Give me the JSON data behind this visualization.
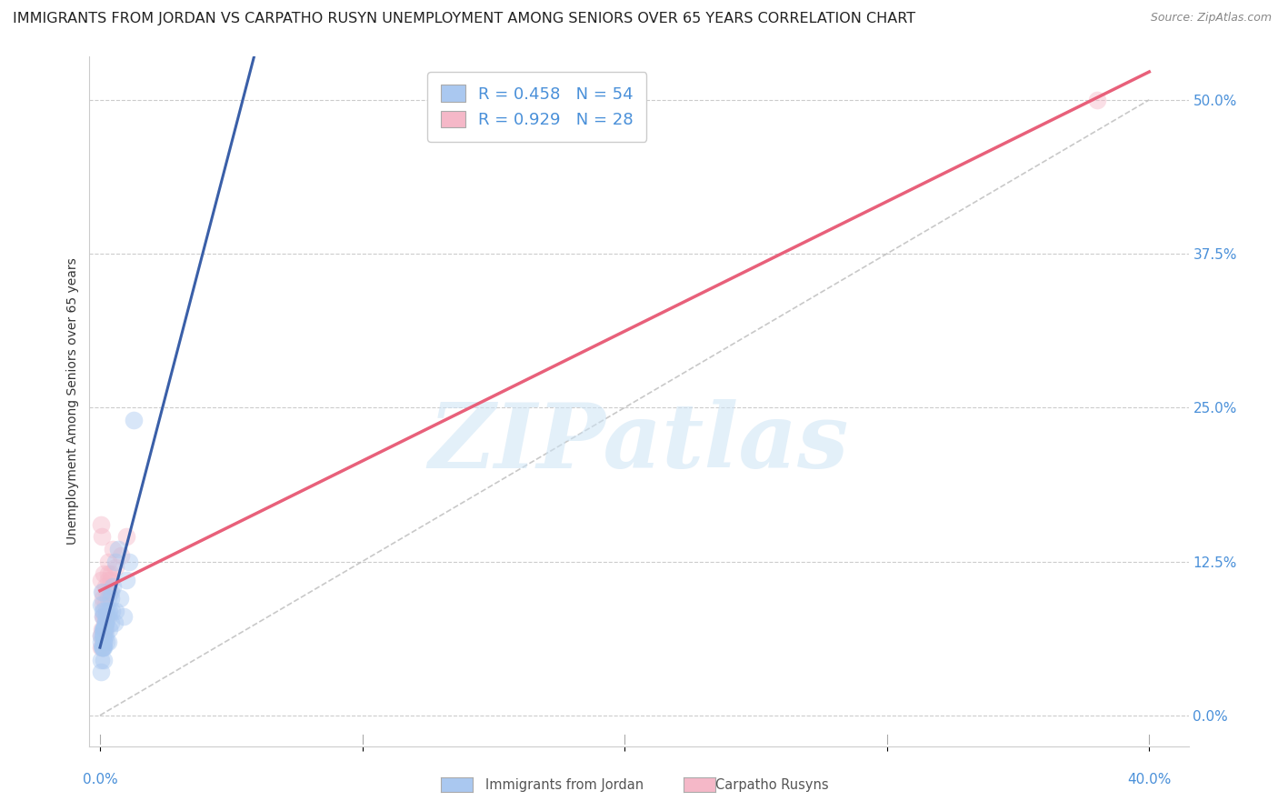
{
  "title": "IMMIGRANTS FROM JORDAN VS CARPATHO RUSYN UNEMPLOYMENT AMONG SENIORS OVER 65 YEARS CORRELATION CHART",
  "source": "Source: ZipAtlas.com",
  "ylabel": "Unemployment Among Seniors over 65 years",
  "legend_label_1": "Immigrants from Jordan",
  "legend_label_2": "Carpatho Rusyns",
  "R1": 0.458,
  "N1": 54,
  "R2": 0.929,
  "N2": 28,
  "color1": "#aac8f0",
  "color2": "#f5b8c8",
  "line_color1": "#3a5fa8",
  "line_color2": "#e8607a",
  "diag_color": "#bbbbbb",
  "xlim_min": -0.004,
  "xlim_max": 0.415,
  "ylim_min": -0.025,
  "ylim_max": 0.535,
  "yticks": [
    0.0,
    0.125,
    0.25,
    0.375,
    0.5
  ],
  "ytick_labels": [
    "0.0%",
    "12.5%",
    "25.0%",
    "37.5%",
    "50.0%"
  ],
  "xtick_left_label": "0.0%",
  "xtick_right_label": "40.0%",
  "watermark_text": "ZIPatlas",
  "background_color": "#ffffff",
  "grid_color": "#cccccc",
  "axis_label_color": "#4a90d9",
  "title_color": "#222222",
  "title_fontsize": 11.5,
  "ylabel_fontsize": 10,
  "tick_fontsize": 11,
  "marker_size": 200,
  "marker_alpha": 0.45,
  "jordan_x": [
    0.0005,
    0.001,
    0.0015,
    0.001,
    0.0005,
    0.002,
    0.0015,
    0.0008,
    0.002,
    0.001,
    0.0006,
    0.0005,
    0.0015,
    0.001,
    0.002,
    0.0025,
    0.003,
    0.0015,
    0.001,
    0.0005,
    0.004,
    0.002,
    0.003,
    0.005,
    0.006,
    0.001,
    0.0015,
    0.0025,
    0.0035,
    0.0015,
    0.0005,
    0.001,
    0.0015,
    0.007,
    0.004,
    0.01,
    0.011,
    0.002,
    0.0015,
    0.003,
    0.001,
    0.0015,
    0.004,
    0.003,
    0.0035,
    0.002,
    0.0015,
    0.0025,
    0.0045,
    0.0055,
    0.0075,
    0.006,
    0.009,
    0.013
  ],
  "jordan_y": [
    0.06,
    0.065,
    0.07,
    0.08,
    0.09,
    0.065,
    0.07,
    0.1,
    0.08,
    0.065,
    0.055,
    0.045,
    0.07,
    0.085,
    0.075,
    0.06,
    0.085,
    0.07,
    0.055,
    0.065,
    0.1,
    0.075,
    0.095,
    0.105,
    0.125,
    0.07,
    0.055,
    0.085,
    0.07,
    0.06,
    0.035,
    0.055,
    0.045,
    0.135,
    0.095,
    0.11,
    0.125,
    0.075,
    0.085,
    0.06,
    0.055,
    0.06,
    0.075,
    0.08,
    0.085,
    0.07,
    0.065,
    0.08,
    0.085,
    0.075,
    0.095,
    0.085,
    0.08,
    0.24
  ],
  "rusyn_x": [
    0.0004,
    0.0005,
    0.0006,
    0.0005,
    0.001,
    0.001,
    0.0005,
    0.0006,
    0.001,
    0.0012,
    0.0015,
    0.0015,
    0.0018,
    0.002,
    0.002,
    0.0025,
    0.0025,
    0.003,
    0.003,
    0.003,
    0.0035,
    0.004,
    0.004,
    0.005,
    0.006,
    0.008,
    0.01,
    0.38
  ],
  "rusyn_y": [
    0.055,
    0.065,
    0.145,
    0.155,
    0.09,
    0.1,
    0.11,
    0.07,
    0.08,
    0.095,
    0.08,
    0.115,
    0.07,
    0.09,
    0.105,
    0.1,
    0.08,
    0.115,
    0.11,
    0.125,
    0.1,
    0.115,
    0.11,
    0.135,
    0.12,
    0.13,
    0.145,
    0.5
  ]
}
